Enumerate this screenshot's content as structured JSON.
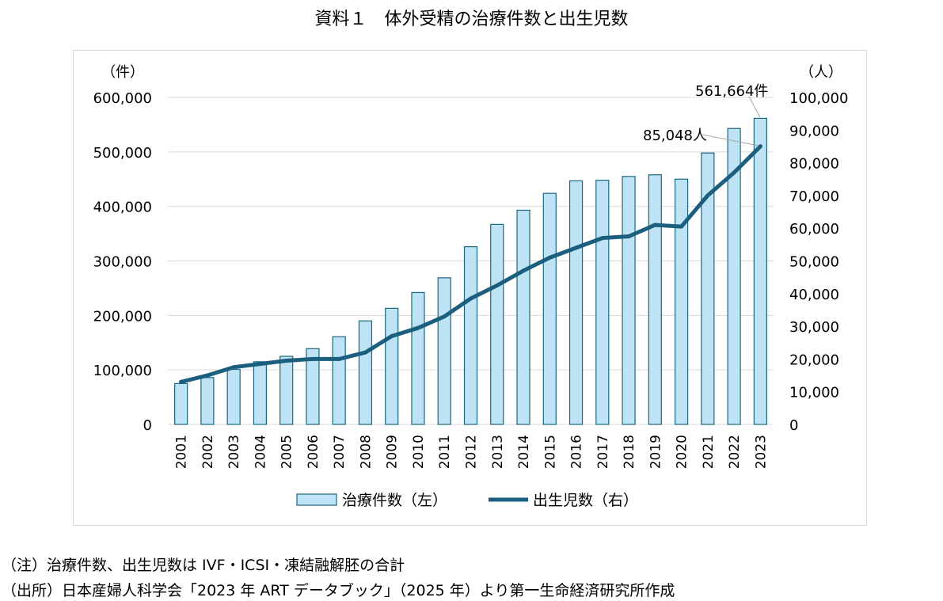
{
  "title": "資料１　体外受精の治療件数と出生児数",
  "chart_data": {
    "type": "bar+line",
    "title": "資料１　体外受精の治療件数と出生児数",
    "categories": [
      "2001",
      "2002",
      "2003",
      "2004",
      "2005",
      "2006",
      "2007",
      "2008",
      "2009",
      "2010",
      "2011",
      "2012",
      "2013",
      "2014",
      "2015",
      "2016",
      "2017",
      "2018",
      "2019",
      "2020",
      "2021",
      "2022",
      "2023"
    ],
    "series": [
      {
        "name": "治療件数（左）",
        "type": "bar",
        "axis": "left",
        "values": [
          75000,
          86000,
          101000,
          115000,
          125000,
          139000,
          161000,
          190000,
          213000,
          242000,
          269000,
          326000,
          367000,
          393000,
          424000,
          447000,
          448000,
          455000,
          458000,
          450000,
          498000,
          543000,
          561664
        ]
      },
      {
        "name": "出生児数（右）",
        "type": "line",
        "axis": "right",
        "values": [
          13000,
          15000,
          17500,
          18500,
          19500,
          20000,
          20000,
          22000,
          27000,
          29500,
          33000,
          38500,
          42500,
          47000,
          51000,
          54000,
          57000,
          57500,
          61000,
          60500,
          70000,
          77000,
          85048
        ]
      }
    ],
    "left_axis": {
      "unit": "（件）",
      "ylim": [
        0,
        600000
      ],
      "ticks": [
        "0",
        "100,000",
        "200,000",
        "300,000",
        "400,000",
        "500,000",
        "600,000"
      ]
    },
    "right_axis": {
      "unit": "（人）",
      "ylim": [
        0,
        100000
      ],
      "ticks": [
        "0",
        "10,000",
        "20,000",
        "30,000",
        "40,000",
        "50,000",
        "60,000",
        "70,000",
        "80,000",
        "90,000",
        "100,000"
      ]
    },
    "annotations": [
      "561,664件",
      "85,048人"
    ],
    "legend": [
      "治療件数（左）",
      "出生児数（右）"
    ],
    "legend_position": "bottom",
    "colors": {
      "bar_fill": "#bde3f5",
      "bar_stroke": "#1b6680",
      "line": "#1b5e7d",
      "grid": "#d9d9d9",
      "leader": "#a6a6a6"
    }
  },
  "notes": [
    "（注）治療件数、出生児数は IVF・ICSI・凍結融解胚の合計",
    "（出所）日本産婦人科学会「2023 年 ART データブック」（2025 年）より第一生命経済研究所作成"
  ]
}
